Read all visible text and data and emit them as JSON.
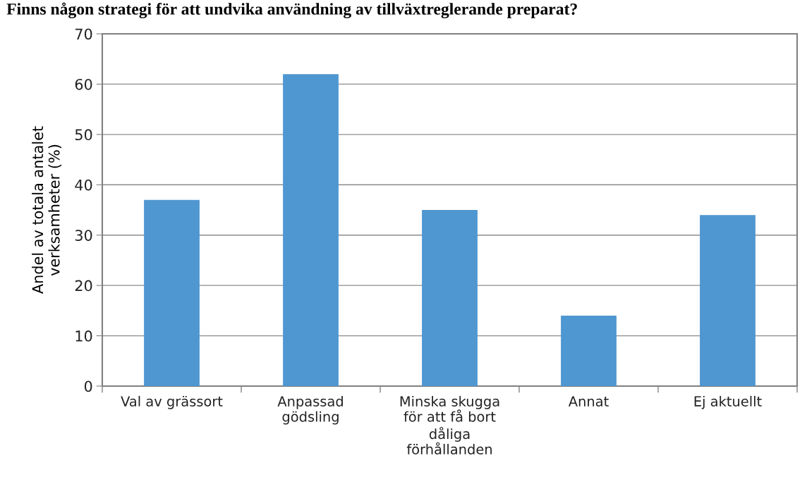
{
  "chart_data": {
    "type": "bar",
    "title": "Finns någon strategi för att undvika användning av tillväxtreglerande preparat?",
    "ylabel": "Andel av totala antalet\nverksamheter (%)",
    "categories": [
      "Val av grässort",
      "Anpassad\ngödsling",
      "Minska skugga\nför att få bort\ndåliga\nförhållanden",
      "Annat",
      "Ej aktuellt"
    ],
    "values": [
      37,
      62,
      35,
      14,
      34
    ],
    "color": "#4f97d1",
    "ylim": [
      0,
      70
    ],
    "yticks": [
      0,
      10,
      20,
      30,
      40,
      50,
      60,
      70
    ],
    "grid": "y",
    "legend": false
  }
}
